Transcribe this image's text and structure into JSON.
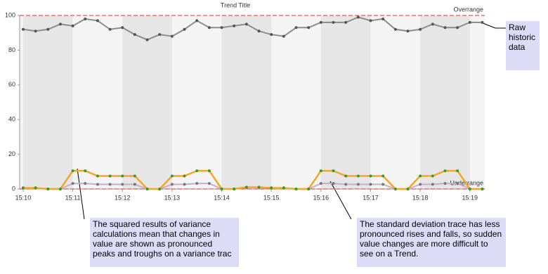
{
  "chart_data": {
    "type": "line",
    "title": "Trend Title",
    "x": [
      10,
      10.25,
      10.5,
      10.75,
      11,
      11.25,
      11.5,
      11.75,
      12,
      12.25,
      12.5,
      12.75,
      13,
      13.25,
      13.5,
      13.75,
      14,
      14.25,
      14.5,
      14.75,
      15,
      15.25,
      15.5,
      15.75,
      16,
      16.25,
      16.5,
      16.75,
      17,
      17.25,
      17.5,
      17.75,
      18,
      18.25,
      18.5,
      18.75,
      19,
      19.25
    ],
    "series": [
      {
        "name": "Raw historic data",
        "color": "#8c8c8c",
        "marker_color": "#555555",
        "values": [
          92,
          91,
          92,
          95,
          94,
          98,
          97,
          92,
          93,
          89,
          86,
          89,
          88,
          92,
          97,
          93,
          93,
          94,
          95,
          91,
          89,
          88,
          93,
          93,
          96,
          96,
          96,
          99,
          97,
          98,
          92,
          91,
          92,
          95,
          93,
          93,
          96,
          96
        ]
      },
      {
        "name": "Variance",
        "color": "#f5a623",
        "marker_color": "#3a9a2a",
        "values": [
          0.5,
          0.5,
          0,
          0,
          10.5,
          10.5,
          7.5,
          7.5,
          7.5,
          7.5,
          0,
          0,
          7.5,
          7.5,
          10.5,
          10.5,
          0,
          0,
          1,
          1,
          0.5,
          0.5,
          0,
          0,
          10.5,
          10.5,
          7.5,
          7.5,
          7.5,
          7.5,
          0,
          0,
          7.5,
          7.5,
          10.5,
          10.5,
          0,
          0
        ]
      },
      {
        "name": "Standard deviation",
        "color": "#c8aec8",
        "marker_color": "#777777",
        "values": [
          0.7,
          0.7,
          0,
          0,
          3.2,
          3.2,
          2.7,
          2.7,
          2.7,
          2.7,
          0,
          0,
          2.7,
          2.7,
          3.2,
          3.2,
          0,
          0,
          1,
          1,
          0.7,
          0.7,
          0,
          0,
          3.2,
          3.2,
          2.7,
          2.7,
          2.7,
          2.7,
          0,
          0,
          2.7,
          2.7,
          3.2,
          3.2,
          0,
          0
        ]
      }
    ],
    "xlim": [
      9.93,
      19.3
    ],
    "xticks": [
      {
        "value": 10,
        "label": "15:10"
      },
      {
        "value": 11,
        "label": "15:11"
      },
      {
        "value": 12,
        "label": "15:12"
      },
      {
        "value": 13,
        "label": "15:13"
      },
      {
        "value": 14,
        "label": "15:14"
      },
      {
        "value": 15,
        "label": "15:15"
      },
      {
        "value": 16,
        "label": "15:16"
      },
      {
        "value": 17,
        "label": "15:17"
      },
      {
        "value": 18,
        "label": "15:18"
      },
      {
        "value": 19,
        "label": "15:19"
      }
    ],
    "ylim": [
      0,
      100
    ],
    "yticks": [
      0,
      20,
      40,
      60,
      80,
      100
    ],
    "limits": [
      {
        "label": "Overrange",
        "value": 100
      },
      {
        "label": "Underrange",
        "value": 0
      }
    ],
    "limit_color": "#e03030"
  },
  "callouts": [
    {
      "text": "Raw historic data"
    },
    {
      "text": "The squared results of variance calculations mean that changes in value are shown as pronounced peaks and troughs on a variance trac"
    },
    {
      "text": "The standard deviation trace has less pronounced rises and falls, so sudden value changes are more difficult to see on a Trend."
    }
  ]
}
